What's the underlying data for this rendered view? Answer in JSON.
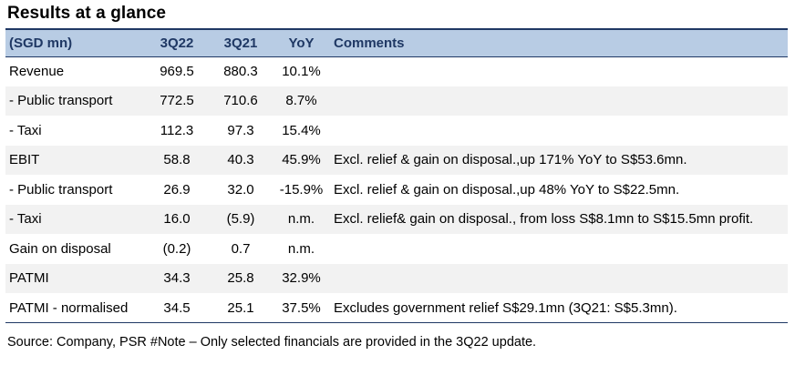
{
  "title": "Results at a glance",
  "table": {
    "headers": [
      "(SGD mn)",
      "3Q22",
      "3Q21",
      "YoY",
      "Comments"
    ],
    "rows": [
      {
        "label": " Revenue",
        "q22": "969.5",
        "q21": "880.3",
        "yoy": "10.1%",
        "comment": ""
      },
      {
        "label": " - Public transport",
        "q22": "772.5",
        "q21": "710.6",
        "yoy": "8.7%",
        "comment": ""
      },
      {
        "label": " - Taxi",
        "q22": "112.3",
        "q21": "97.3",
        "yoy": "15.4%",
        "comment": ""
      },
      {
        "label": " EBIT",
        "q22": "58.8",
        "q21": "40.3",
        "yoy": "45.9%",
        "comment": "Excl. relief & gain on disposal.,up 171% YoY to S$53.6mn."
      },
      {
        "label": " - Public transport",
        "q22": "26.9",
        "q21": "32.0",
        "yoy": "-15.9%",
        "comment": "Excl. relief & gain on disposal.,up 48% YoY to S$22.5mn."
      },
      {
        "label": " - Taxi",
        "q22": "16.0",
        "q21": "(5.9)",
        "yoy": "n.m.",
        "comment": "Excl. relief& gain on disposal., from loss S$8.1mn to S$15.5mn profit."
      },
      {
        "label": " Gain on disposal",
        "q22": "(0.2)",
        "q21": "0.7",
        "yoy": "n.m.",
        "comment": ""
      },
      {
        "label": " PATMI",
        "q22": "34.3",
        "q21": "25.8",
        "yoy": "32.9%",
        "comment": ""
      },
      {
        "label": " PATMI - normalised",
        "q22": "34.5",
        "q21": "25.1",
        "yoy": "37.5%",
        "comment": "Excludes government relief S$29.1mn (3Q21: S$5.3mn)."
      }
    ]
  },
  "source": "Source: Company, PSR #Note – Only selected financials are provided in the 3Q22 update."
}
